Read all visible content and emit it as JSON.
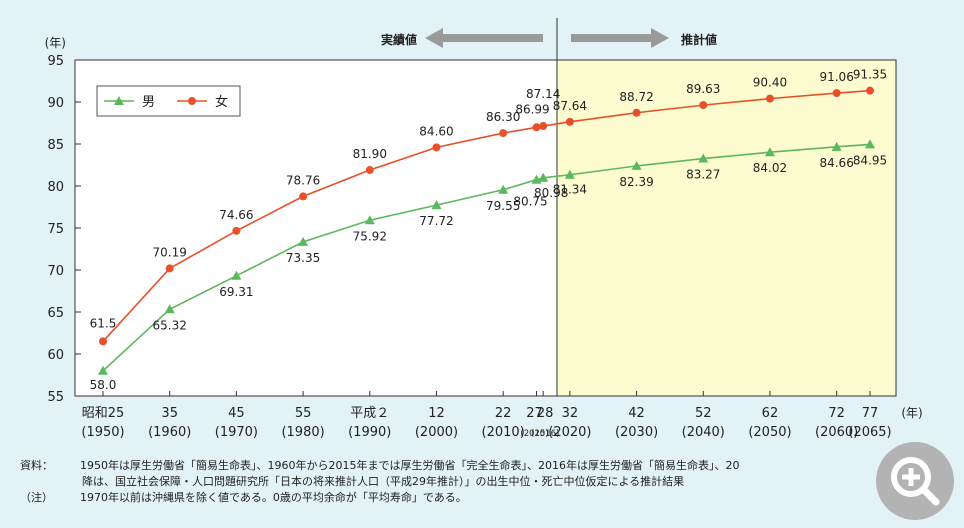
{
  "chart_data": {
    "type": "line",
    "ylabel": "(年)",
    "xlabel": "(年)",
    "ylim": [
      55,
      95
    ],
    "yticks": [
      "55",
      "60",
      "65",
      "70",
      "75",
      "80",
      "85",
      "90",
      "95"
    ],
    "categories": [
      {
        "top": "昭和25",
        "bottom": "(1950)",
        "year": 1950
      },
      {
        "top": "35",
        "bottom": "(1960)",
        "year": 1960
      },
      {
        "top": "45",
        "bottom": "(1970)",
        "year": 1970
      },
      {
        "top": "55",
        "bottom": "(1980)",
        "year": 1980
      },
      {
        "top": "平成２",
        "bottom": "(1990)",
        "year": 1990
      },
      {
        "top": "12",
        "bottom": "(2000)",
        "year": 2000
      },
      {
        "top": "22",
        "bottom": "(2010)",
        "year": 2010
      },
      {
        "top": "27",
        "bottom": "(2015)",
        "year": 2015
      },
      {
        "top": "28",
        "bottom": "(2016)",
        "year": 2016
      },
      {
        "top": "32",
        "bottom": "(2020)",
        "year": 2020
      },
      {
        "top": "42",
        "bottom": "(2030)",
        "year": 2030
      },
      {
        "top": "52",
        "bottom": "(2040)",
        "year": 2040
      },
      {
        "top": "62",
        "bottom": "(2050)",
        "year": 2050
      },
      {
        "top": "72",
        "bottom": "(2060)",
        "year": 2060
      },
      {
        "top": "77",
        "bottom": "(2065)",
        "year": 2065
      }
    ],
    "series": [
      {
        "name": "男",
        "color": "#5cb85c",
        "marker": "triangle",
        "values": [
          58.0,
          65.32,
          69.31,
          73.35,
          75.92,
          77.72,
          79.55,
          80.75,
          80.98,
          81.34,
          82.39,
          83.27,
          84.02,
          84.66,
          84.95
        ],
        "labels": [
          "58.0",
          "65.32",
          "69.31",
          "73.35",
          "75.92",
          "77.72",
          "79.55",
          "80.75",
          "80.98",
          "81.34",
          "82.39",
          "83.27",
          "84.02",
          "84.66",
          "84.95"
        ]
      },
      {
        "name": "女",
        "color": "#e8502a",
        "marker": "circle",
        "values": [
          61.5,
          70.19,
          74.66,
          78.76,
          81.9,
          84.6,
          86.3,
          86.99,
          87.14,
          87.64,
          88.72,
          89.63,
          90.4,
          91.06,
          91.35
        ],
        "labels": [
          "61.5",
          "70.19",
          "74.66",
          "78.76",
          "81.90",
          "84.60",
          "86.30",
          "86.99",
          "87.14",
          "87.64",
          "88.72",
          "89.63",
          "90.40",
          "91.06",
          "91.35"
        ]
      }
    ],
    "legend_placement": "top-left",
    "region_left": "実績値",
    "region_right": "推計値",
    "projection_fill": "#fdfbd0",
    "grid": false
  },
  "notes": {
    "source_key": "資料：",
    "source_line1": "1950年は厚生労働省「簡易生命表」、1960年から2015年までは厚生労働省「完全生命表」、2016年は厚生労働省「簡易生命表」、20",
    "source_line2": "降は、国立社会保障・人口問題研究所「日本の将来推計人口（平成29年推計）」の出生中位・死亡中位仮定による推計結果",
    "note_key": "（注）",
    "note_line": "1970年以前は沖縄県を除く値である。0歳の平均余命が「平均寿命」である。"
  }
}
